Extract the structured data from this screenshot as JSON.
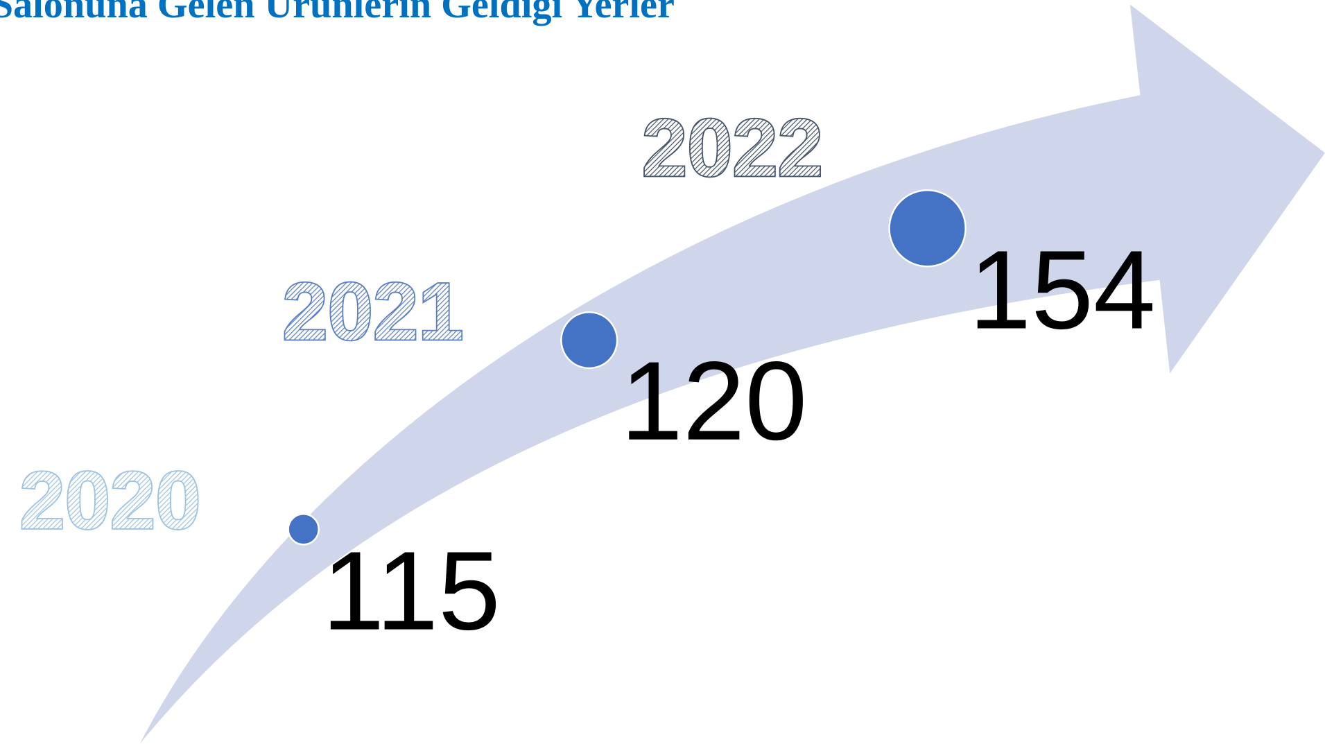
{
  "title": "Salonuna Gelen Ürünlerin Geldiği Yerler",
  "items": [
    {
      "year": 2020,
      "value": 115
    },
    {
      "year": 2021,
      "value": 120
    },
    {
      "year": 2022,
      "value": 154
    }
  ]
}
